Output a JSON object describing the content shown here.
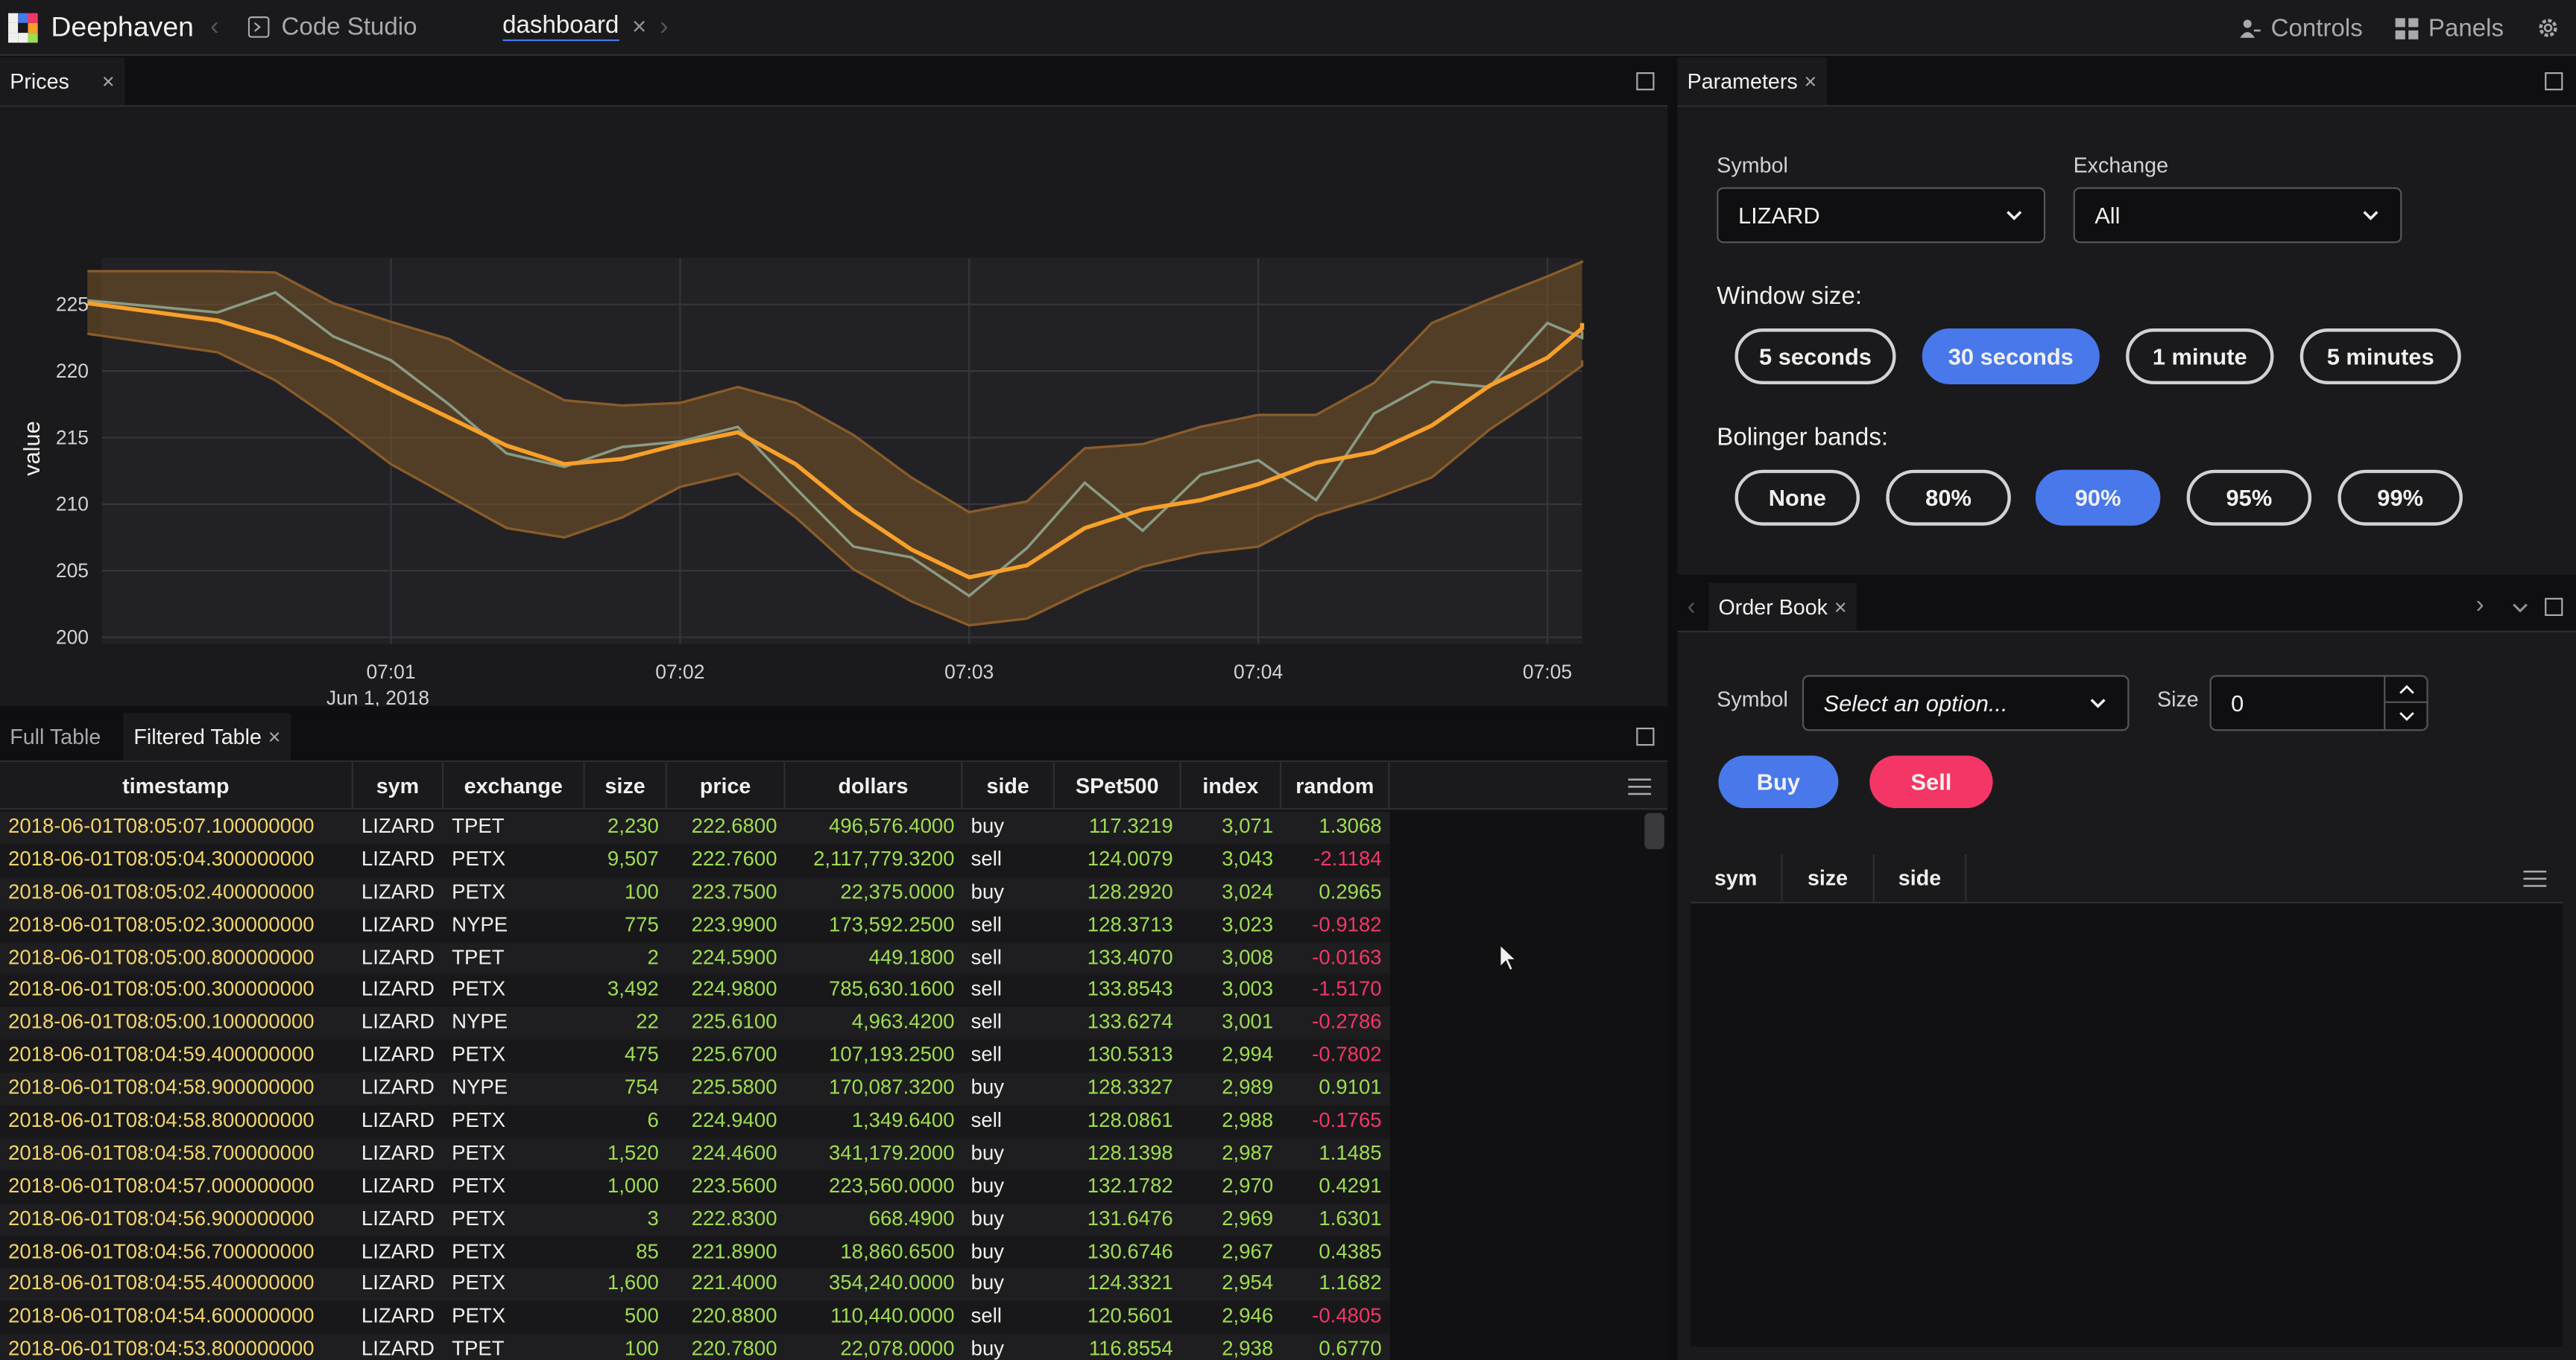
{
  "app": {
    "brand": "Deephaven",
    "tabs": [
      {
        "label": "Code Studio"
      },
      {
        "label": "dashboard"
      }
    ],
    "controls_label": "Controls",
    "panels_label": "Panels"
  },
  "prices_panel": {
    "tab_label": "Prices"
  },
  "chart_data": {
    "type": "line",
    "xlabel": "timestamp",
    "ylabel": "value",
    "x_ticks": [
      "07:01",
      "07:02",
      "07:03",
      "07:04",
      "07:05"
    ],
    "x_subtick": "Jun 1, 2018",
    "y_ticks": [
      200,
      205,
      210,
      215,
      220,
      225
    ],
    "ylim": [
      199.5,
      228.5
    ],
    "x_minutes": [
      0.2,
      0.4,
      0.6,
      0.8,
      1.0,
      1.2,
      1.4,
      1.6,
      1.8,
      2.0,
      2.2,
      2.4,
      2.6,
      2.8,
      3.0,
      3.2,
      3.4,
      3.6,
      3.8,
      4.0,
      4.2,
      4.4,
      4.6,
      4.8,
      5.0,
      5.2,
      5.3
    ],
    "series": [
      {
        "values": [
          225.3,
          224.4,
          225.9,
          222.6,
          220.8,
          217.5,
          213.8,
          212.8,
          214.3,
          214.7,
          215.8,
          211.2,
          206.8,
          206.0,
          203.1,
          206.7,
          211.6,
          208.0,
          212.2,
          213.3,
          210.3,
          216.8,
          219.2,
          218.8,
          223.6,
          222.5,
          223.0
        ]
      },
      {
        "values": [
          225.1,
          223.8,
          222.5,
          220.7,
          218.6,
          216.5,
          214.4,
          213.0,
          213.4,
          214.5,
          215.4,
          213.0,
          209.5,
          206.6,
          204.5,
          205.4,
          208.2,
          209.6,
          210.3,
          211.5,
          213.1,
          213.9,
          215.9,
          218.9,
          221.0,
          223.2,
          223.6
        ]
      },
      {
        "values": [
          227.5,
          227.5,
          227.4,
          225.1,
          223.7,
          222.4,
          220.0,
          217.8,
          217.4,
          217.6,
          218.8,
          217.6,
          215.2,
          212.0,
          209.4,
          210.2,
          214.2,
          214.5,
          215.8,
          216.7,
          216.7,
          219.1,
          223.6,
          225.4,
          227.1,
          228.2,
          228.3
        ]
      },
      {
        "values": [
          222.8,
          221.4,
          219.3,
          216.3,
          213.0,
          210.6,
          208.2,
          207.5,
          209.0,
          211.3,
          212.3,
          209.0,
          205.1,
          202.7,
          200.9,
          201.4,
          203.5,
          205.3,
          206.3,
          206.8,
          209.1,
          210.4,
          212.0,
          215.6,
          218.5,
          220.4,
          220.8
        ]
      }
    ],
    "colors": {
      "price": "#8a9b86",
      "avg": "#f7a02b",
      "band_fill": "#7a5526",
      "band_line": "#8a5c2a"
    },
    "grid": true
  },
  "parameters": {
    "tab_label": "Parameters",
    "symbol_label": "Symbol",
    "symbol_value": "LIZARD",
    "exchange_label": "Exchange",
    "exchange_value": "All",
    "window_label": "Window size:",
    "window_options": [
      "5 seconds",
      "30 seconds",
      "1 minute",
      "5 minutes"
    ],
    "window_selected": "30 seconds",
    "bands_label": "Bolinger bands:",
    "band_options": [
      "None",
      "80%",
      "90%",
      "95%",
      "99%"
    ],
    "band_selected": "90%"
  },
  "table_panel": {
    "tabs": [
      "Full Table",
      "Filtered Table"
    ],
    "columns": [
      "timestamp",
      "sym",
      "exchange",
      "size",
      "price",
      "dollars",
      "side",
      "SPet500",
      "index",
      "random"
    ],
    "rows": [
      [
        "2018-06-01T08:05:07.100000000",
        "LIZARD",
        "TPET",
        "2,230",
        "222.6800",
        "496,576.4000",
        "buy",
        "117.3219",
        "3,071",
        "1.3068"
      ],
      [
        "2018-06-01T08:05:04.300000000",
        "LIZARD",
        "PETX",
        "9,507",
        "222.7600",
        "2,117,779.3200",
        "sell",
        "124.0079",
        "3,043",
        "-2.1184"
      ],
      [
        "2018-06-01T08:05:02.400000000",
        "LIZARD",
        "PETX",
        "100",
        "223.7500",
        "22,375.0000",
        "buy",
        "128.2920",
        "3,024",
        "0.2965"
      ],
      [
        "2018-06-01T08:05:02.300000000",
        "LIZARD",
        "NYPE",
        "775",
        "223.9900",
        "173,592.2500",
        "sell",
        "128.3713",
        "3,023",
        "-0.9182"
      ],
      [
        "2018-06-01T08:05:00.800000000",
        "LIZARD",
        "TPET",
        "2",
        "224.5900",
        "449.1800",
        "sell",
        "133.4070",
        "3,008",
        "-0.0163"
      ],
      [
        "2018-06-01T08:05:00.300000000",
        "LIZARD",
        "PETX",
        "3,492",
        "224.9800",
        "785,630.1600",
        "sell",
        "133.8543",
        "3,003",
        "-1.5170"
      ],
      [
        "2018-06-01T08:05:00.100000000",
        "LIZARD",
        "NYPE",
        "22",
        "225.6100",
        "4,963.4200",
        "sell",
        "133.6274",
        "3,001",
        "-0.2786"
      ],
      [
        "2018-06-01T08:04:59.400000000",
        "LIZARD",
        "PETX",
        "475",
        "225.6700",
        "107,193.2500",
        "sell",
        "130.5313",
        "2,994",
        "-0.7802"
      ],
      [
        "2018-06-01T08:04:58.900000000",
        "LIZARD",
        "NYPE",
        "754",
        "225.5800",
        "170,087.3200",
        "buy",
        "128.3327",
        "2,989",
        "0.9101"
      ],
      [
        "2018-06-01T08:04:58.800000000",
        "LIZARD",
        "PETX",
        "6",
        "224.9400",
        "1,349.6400",
        "sell",
        "128.0861",
        "2,988",
        "-0.1765"
      ],
      [
        "2018-06-01T08:04:58.700000000",
        "LIZARD",
        "PETX",
        "1,520",
        "224.4600",
        "341,179.2000",
        "buy",
        "128.1398",
        "2,987",
        "1.1485"
      ],
      [
        "2018-06-01T08:04:57.000000000",
        "LIZARD",
        "PETX",
        "1,000",
        "223.5600",
        "223,560.0000",
        "buy",
        "132.1782",
        "2,970",
        "0.4291"
      ],
      [
        "2018-06-01T08:04:56.900000000",
        "LIZARD",
        "PETX",
        "3",
        "222.8300",
        "668.4900",
        "buy",
        "131.6476",
        "2,969",
        "1.6301"
      ],
      [
        "2018-06-01T08:04:56.700000000",
        "LIZARD",
        "PETX",
        "85",
        "221.8900",
        "18,860.6500",
        "buy",
        "130.6746",
        "2,967",
        "0.4385"
      ],
      [
        "2018-06-01T08:04:55.400000000",
        "LIZARD",
        "PETX",
        "1,600",
        "221.4000",
        "354,240.0000",
        "buy",
        "124.3321",
        "2,954",
        "1.1682"
      ],
      [
        "2018-06-01T08:04:54.600000000",
        "LIZARD",
        "PETX",
        "500",
        "220.8800",
        "110,440.0000",
        "sell",
        "120.5601",
        "2,946",
        "-0.4805"
      ],
      [
        "2018-06-01T08:04:53.800000000",
        "LIZARD",
        "TPET",
        "100",
        "220.7800",
        "22,078.0000",
        "buy",
        "116.8554",
        "2,938",
        "0.6770"
      ]
    ]
  },
  "order_book": {
    "tab_label": "Order Book",
    "symbol_label": "Symbol",
    "symbol_placeholder": "Select an option...",
    "size_label": "Size",
    "size_value": "0",
    "buy_label": "Buy",
    "sell_label": "Sell",
    "columns": [
      "sym",
      "size",
      "side"
    ]
  }
}
